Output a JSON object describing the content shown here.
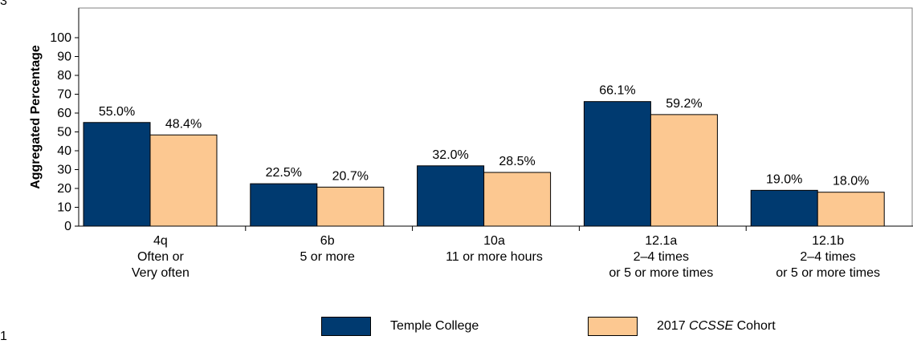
{
  "page_marks": {
    "top": "3",
    "bottom": "1"
  },
  "chart_data": {
    "type": "bar",
    "ylabel": "Aggregated Percentage",
    "xlabel": "",
    "ylim": [
      0,
      100
    ],
    "yticks": [
      0,
      10,
      20,
      30,
      40,
      50,
      60,
      70,
      80,
      90,
      100
    ],
    "grid": false,
    "legend_position": "bottom",
    "categories": [
      [
        "4q",
        "Often or",
        "Very often"
      ],
      [
        "6b",
        "5 or more"
      ],
      [
        "10a",
        "11 or more hours"
      ],
      [
        "12.1a",
        "2–4 times",
        "or 5 or more times"
      ],
      [
        "12.1b",
        "2–4 times",
        "or 5 or more times"
      ]
    ],
    "series": [
      {
        "name": "Temple College",
        "color": "#003a70",
        "values": [
          55.0,
          22.5,
          32.0,
          66.1,
          19.0
        ],
        "labels": [
          "55.0%",
          "22.5%",
          "32.0%",
          "66.1%",
          "19.0%"
        ]
      },
      {
        "name": "2017 CCSSE Cohort",
        "name_prefix": "2017 ",
        "name_italic": "CCSSE",
        "name_suffix": " Cohort",
        "color": "#fcc891",
        "values": [
          48.4,
          20.7,
          28.5,
          59.2,
          18.0
        ],
        "labels": [
          "48.4%",
          "20.7%",
          "28.5%",
          "59.2%",
          "18.0%"
        ]
      }
    ]
  }
}
